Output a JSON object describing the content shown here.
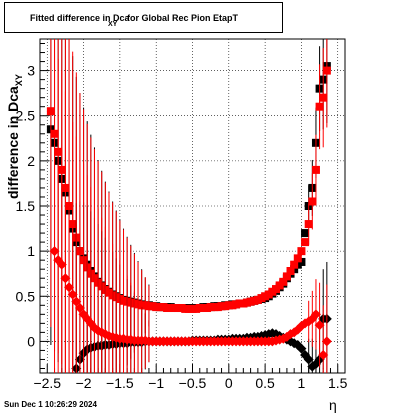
{
  "title": {
    "main": "Fitted difference in Dca",
    "sub": "XY",
    "rest": "for Global Rec Pion EtapT"
  },
  "axes": {
    "x_title": "η",
    "y_title_main": "difference in Dca",
    "y_title_sub": "XY"
  },
  "footer": {
    "date": "Sun Dec  1 10:26:29 2024"
  },
  "colors": {
    "black_series": "#000000",
    "red_series": "#ff0000",
    "grid": "#000000"
  },
  "chart_data": {
    "type": "scatter",
    "xlim": [
      -2.6,
      1.6
    ],
    "ylim": [
      -0.35,
      3.35
    ],
    "x_ticks": [
      -2.5,
      -2,
      -1.5,
      -1,
      -0.5,
      0,
      0.5,
      1,
      1.5
    ],
    "x_tick_labels": [
      "−2.5",
      "−2",
      "−1.5",
      "−1",
      "−0.5",
      "0",
      "0.5",
      "1",
      "1.5"
    ],
    "y_ticks": [
      0,
      0.5,
      1,
      1.5,
      2,
      2.5,
      3
    ],
    "y_tick_labels": [
      "0",
      "0.5",
      "1",
      "1.5",
      "2",
      "2.5",
      "3"
    ],
    "grid": true,
    "series": [
      {
        "color": "black",
        "marker": "square",
        "x": [
          -2.45,
          -2.4,
          -2.35,
          -2.3,
          -2.25,
          -2.2,
          -2.15,
          -2.1,
          -2.05,
          -2.0,
          -1.95,
          -1.9,
          -1.85,
          -1.8,
          -1.75,
          -1.7,
          -1.65,
          -1.6,
          -1.55,
          -1.5,
          -1.45,
          -1.4,
          -1.35,
          -1.3,
          -1.25,
          -1.2,
          -1.15,
          -1.1,
          -1.05,
          -1.0,
          -0.95,
          -0.9,
          -0.85,
          -0.8,
          -0.75,
          -0.7,
          -0.65,
          -0.6,
          -0.55,
          -0.5,
          -0.45,
          -0.4,
          -0.35,
          -0.3,
          -0.25,
          -0.2,
          -0.15,
          -0.1,
          -0.05,
          0.0,
          0.05,
          0.1,
          0.15,
          0.2,
          0.25,
          0.3,
          0.35,
          0.4,
          0.45,
          0.5,
          0.55,
          0.6,
          0.65,
          0.7,
          0.75,
          0.8,
          0.85,
          0.9,
          0.95,
          1.0,
          1.05,
          1.1,
          1.15,
          1.2,
          1.25,
          1.3,
          1.35
        ],
        "y": [
          2.35,
          2.2,
          2.0,
          1.8,
          1.65,
          1.45,
          1.25,
          1.1,
          1.0,
          0.92,
          0.85,
          0.78,
          0.72,
          0.66,
          0.62,
          0.58,
          0.55,
          0.52,
          0.5,
          0.48,
          0.46,
          0.45,
          0.44,
          0.43,
          0.42,
          0.41,
          0.4,
          0.4,
          0.39,
          0.39,
          0.38,
          0.38,
          0.38,
          0.38,
          0.37,
          0.37,
          0.37,
          0.37,
          0.37,
          0.37,
          0.37,
          0.37,
          0.38,
          0.38,
          0.38,
          0.39,
          0.39,
          0.39,
          0.4,
          0.4,
          0.41,
          0.41,
          0.42,
          0.42,
          0.43,
          0.44,
          0.45,
          0.46,
          0.47,
          0.48,
          0.5,
          0.53,
          0.56,
          0.6,
          0.64,
          0.7,
          0.75,
          0.8,
          0.85,
          0.88,
          1.2,
          1.5,
          1.7,
          2.2,
          2.8,
          2.9,
          3.05
        ]
      },
      {
        "color": "red",
        "marker": "square",
        "x": [
          -2.45,
          -2.4,
          -2.35,
          -2.3,
          -2.25,
          -2.2,
          -2.15,
          -2.1,
          -2.05,
          -2.0,
          -1.95,
          -1.9,
          -1.85,
          -1.8,
          -1.75,
          -1.7,
          -1.65,
          -1.6,
          -1.55,
          -1.5,
          -1.45,
          -1.4,
          -1.35,
          -1.3,
          -1.25,
          -1.2,
          -1.15,
          -1.1,
          -1.05,
          -1.0,
          -0.95,
          -0.9,
          -0.85,
          -0.8,
          -0.75,
          -0.7,
          -0.65,
          -0.6,
          -0.55,
          -0.5,
          -0.45,
          -0.4,
          -0.35,
          -0.3,
          -0.25,
          -0.2,
          -0.15,
          -0.1,
          -0.05,
          0.0,
          0.05,
          0.1,
          0.15,
          0.2,
          0.25,
          0.3,
          0.35,
          0.4,
          0.45,
          0.5,
          0.55,
          0.6,
          0.65,
          0.7,
          0.75,
          0.8,
          0.85,
          0.9,
          0.95,
          1.0,
          1.05,
          1.1,
          1.15,
          1.2,
          1.25,
          1.3,
          1.35
        ],
        "y": [
          2.55,
          2.3,
          2.1,
          1.9,
          1.7,
          1.5,
          1.3,
          1.15,
          1.0,
          0.9,
          0.82,
          0.75,
          0.7,
          0.65,
          0.61,
          0.57,
          0.54,
          0.51,
          0.49,
          0.47,
          0.45,
          0.44,
          0.43,
          0.42,
          0.41,
          0.4,
          0.4,
          0.39,
          0.39,
          0.38,
          0.38,
          0.38,
          0.37,
          0.37,
          0.37,
          0.37,
          0.37,
          0.36,
          0.36,
          0.36,
          0.36,
          0.37,
          0.37,
          0.37,
          0.38,
          0.38,
          0.38,
          0.39,
          0.39,
          0.4,
          0.4,
          0.41,
          0.42,
          0.42,
          0.43,
          0.44,
          0.45,
          0.46,
          0.48,
          0.5,
          0.52,
          0.55,
          0.58,
          0.62,
          0.66,
          0.72,
          0.78,
          0.85,
          0.92,
          1.0,
          1.1,
          1.3,
          1.55,
          1.9,
          2.6,
          2.7,
          3.0
        ]
      },
      {
        "color": "black",
        "marker": "diamond",
        "x": [
          -2.1,
          -2.05,
          -2.0,
          -1.95,
          -1.9,
          -1.85,
          -1.8,
          -1.75,
          -1.7,
          -1.65,
          -1.6,
          -1.55,
          -1.5,
          -1.45,
          -1.4,
          -1.35,
          -1.3,
          -1.25,
          -1.2,
          -1.15,
          -1.1,
          -1.05,
          -1.0,
          -0.95,
          -0.9,
          -0.85,
          -0.8,
          -0.75,
          -0.7,
          -0.65,
          -0.6,
          -0.55,
          -0.5,
          -0.45,
          -0.4,
          -0.35,
          -0.3,
          -0.25,
          -0.2,
          -0.15,
          -0.1,
          -0.05,
          0.0,
          0.05,
          0.1,
          0.15,
          0.2,
          0.25,
          0.3,
          0.35,
          0.4,
          0.45,
          0.5,
          0.55,
          0.6,
          0.65,
          0.7,
          0.75,
          0.8,
          0.85,
          0.9,
          0.95,
          1.0,
          1.05,
          1.1,
          1.15,
          1.2,
          1.25,
          1.3,
          1.35
        ],
        "y": [
          -0.3,
          -0.2,
          -0.13,
          -0.09,
          -0.07,
          -0.06,
          -0.05,
          -0.05,
          -0.04,
          -0.04,
          -0.03,
          -0.03,
          -0.02,
          -0.02,
          -0.02,
          -0.01,
          -0.01,
          -0.01,
          -0.01,
          0.0,
          0.0,
          0.0,
          0.0,
          0.0,
          0.0,
          0.0,
          0.0,
          0.0,
          0.0,
          0.0,
          0.0,
          0.0,
          0.01,
          0.01,
          0.01,
          0.01,
          0.01,
          0.01,
          0.01,
          0.02,
          0.02,
          0.02,
          0.02,
          0.03,
          0.03,
          0.03,
          0.03,
          0.04,
          0.04,
          0.05,
          0.05,
          0.06,
          0.07,
          0.08,
          0.09,
          0.08,
          0.06,
          0.04,
          0.02,
          0.0,
          -0.02,
          -0.04,
          -0.08,
          -0.15,
          -0.2,
          -0.28,
          -0.25,
          -0.2,
          0.25,
          0.25
        ]
      },
      {
        "color": "red",
        "marker": "diamond",
        "x": [
          -2.4,
          -2.35,
          -2.3,
          -2.25,
          -2.2,
          -2.15,
          -2.1,
          -2.05,
          -2.0,
          -1.95,
          -1.9,
          -1.85,
          -1.8,
          -1.75,
          -1.7,
          -1.65,
          -1.6,
          -1.55,
          -1.5,
          -1.45,
          -1.4,
          -1.35,
          -1.3,
          -1.25,
          -1.2,
          -1.15,
          -1.1,
          -1.05,
          -1.0,
          -0.95,
          -0.9,
          -0.85,
          -0.8,
          -0.75,
          -0.7,
          -0.65,
          -0.6,
          -0.55,
          -0.5,
          -0.45,
          -0.4,
          -0.35,
          -0.3,
          -0.25,
          -0.2,
          -0.15,
          -0.1,
          -0.05,
          0.0,
          0.05,
          0.1,
          0.15,
          0.2,
          0.25,
          0.3,
          0.35,
          0.4,
          0.45,
          0.5,
          0.55,
          0.6,
          0.65,
          0.7,
          0.75,
          0.8,
          0.85,
          0.9,
          0.95,
          1.0,
          1.05,
          1.1,
          1.15,
          1.2,
          1.25,
          1.3,
          1.35
        ],
        "y": [
          1.0,
          0.9,
          0.85,
          0.7,
          0.6,
          0.52,
          0.44,
          0.37,
          0.3,
          0.25,
          0.2,
          0.15,
          0.12,
          0.1,
          0.08,
          0.06,
          0.05,
          0.04,
          0.03,
          0.03,
          0.02,
          0.02,
          0.01,
          0.01,
          0.01,
          0.01,
          0.0,
          0.0,
          0.0,
          0.0,
          0.0,
          0.0,
          0.0,
          0.0,
          0.0,
          0.0,
          0.0,
          0.0,
          0.0,
          0.0,
          0.0,
          0.0,
          0.0,
          0.0,
          0.0,
          0.0,
          0.0,
          0.0,
          0.0,
          0.0,
          0.0,
          0.0,
          0.0,
          0.0,
          0.0,
          0.0,
          0.0,
          0.0,
          0.0,
          0.0,
          0.0,
          0.01,
          0.02,
          0.03,
          0.05,
          0.08,
          0.1,
          0.13,
          0.17,
          0.2,
          0.22,
          0.25,
          0.3,
          0.18,
          -0.15,
          0.0
        ]
      }
    ]
  }
}
